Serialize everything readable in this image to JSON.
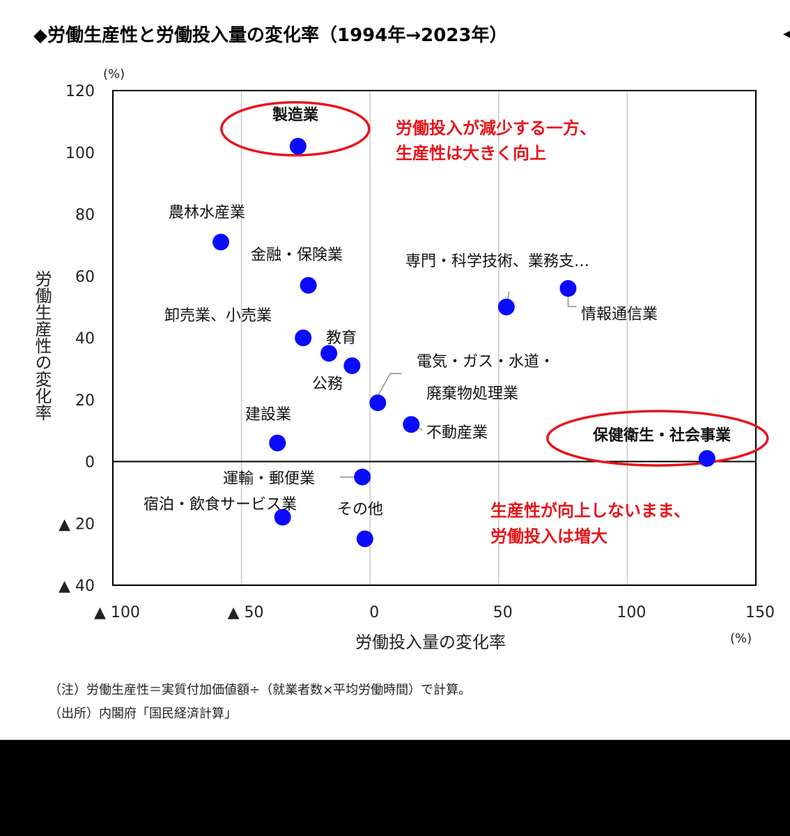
{
  "title": "◆労働生産性と労働投入量の変化率（1994年→2023年）",
  "title_marker": "◀",
  "chart_data": {
    "type": "scatter",
    "xlabel": "労働投入量の変化率",
    "ylabel": "労働生産性の変化率",
    "x_unit": "(%)",
    "y_unit": "(%)",
    "xlim": [
      -100,
      150
    ],
    "ylim": [
      -40,
      120
    ],
    "x_ticks": [
      {
        "value": -100,
        "label": "▲ 100"
      },
      {
        "value": -50,
        "label": "▲ 50"
      },
      {
        "value": 0,
        "label": "0"
      },
      {
        "value": 50,
        "label": "50"
      },
      {
        "value": 100,
        "label": "100"
      },
      {
        "value": 150,
        "label": "150"
      }
    ],
    "y_ticks": [
      {
        "value": 120,
        "label": "120"
      },
      {
        "value": 100,
        "label": "100"
      },
      {
        "value": 80,
        "label": "80"
      },
      {
        "value": 60,
        "label": "60"
      },
      {
        "value": 40,
        "label": "40"
      },
      {
        "value": 20,
        "label": "20"
      },
      {
        "value": 0,
        "label": "0"
      },
      {
        "value": -20,
        "label": "▲ 20"
      },
      {
        "value": -40,
        "label": "▲ 40"
      }
    ],
    "vertical_grid": true,
    "horizontal_grid": false,
    "point_color": "#0a0aff",
    "highlight_color": "#e8141b",
    "points": [
      {
        "name": "製造業",
        "x": -28,
        "y": 102,
        "bold": true
      },
      {
        "name": "農林水産業",
        "x": -58,
        "y": 71
      },
      {
        "name": "金融・保険業",
        "x": -24,
        "y": 57
      },
      {
        "name": "卸売業、小売業",
        "x": -26,
        "y": 40
      },
      {
        "name": "教育",
        "x": -16,
        "y": 35
      },
      {
        "name": "公務",
        "x": -7,
        "y": 31
      },
      {
        "name": "電気・ガス・水道・廃棄物処理業",
        "x": 3,
        "y": 19
      },
      {
        "name": "不動産業",
        "x": 16,
        "y": 12
      },
      {
        "name": "建設業",
        "x": -36,
        "y": 6
      },
      {
        "name": "専門・科学技術、業務支…",
        "x": 53,
        "y": 50
      },
      {
        "name": "情報通信業",
        "x": 77,
        "y": 56
      },
      {
        "name": "保健衛生・社会事業",
        "x": 131,
        "y": 1,
        "bold": true
      },
      {
        "name": "運輸・郵便業",
        "x": -3,
        "y": -5
      },
      {
        "name": "宿泊・飲食サービス業",
        "x": -34,
        "y": -18
      },
      {
        "name": "その他",
        "x": -2,
        "y": -25
      }
    ],
    "labels": {
      "electric_line1": "電気・ガス・水道・",
      "electric_line2": "廃棄物処理業"
    },
    "annotations": {
      "top_line1": "労働投入が減少する一方、",
      "top_line2": "生産性は大きく向上",
      "bottom_line1": "生産性が向上しないまま、",
      "bottom_line2": "労働投入は増大"
    }
  },
  "notes": {
    "note": "（注）労働生産性＝実質付加価値額÷（就業者数×平均労働時間）で計算。",
    "source": "（出所）内閣府「国民経済計算」"
  }
}
